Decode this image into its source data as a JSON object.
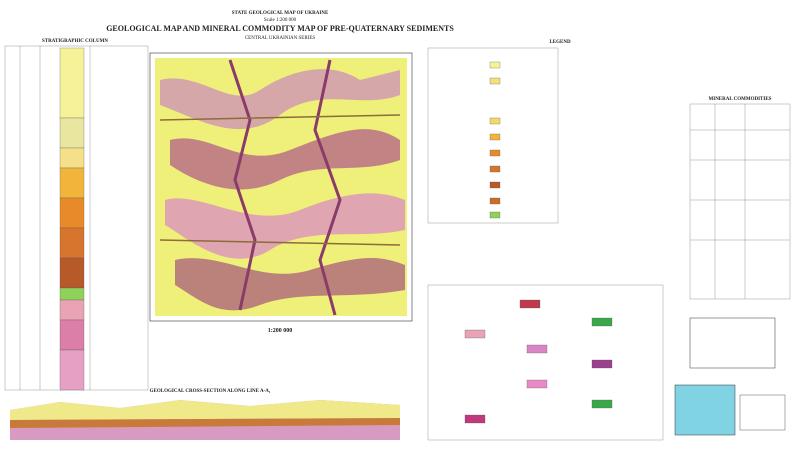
{
  "header": {
    "agency": "STATE GEOLOGICAL MAP OF UKRAINE",
    "scale": "Scale 1:200 000",
    "title": "GEOLOGICAL MAP AND MINERAL COMMODITY MAP OF PRE-QUATERNARY SEDIMENTS",
    "series": "CENTRAL UKRAINIAN SERIES"
  },
  "sections": {
    "stratigraphic_column": "STRATIGRAPHIC COLUMN",
    "legend": "LEGEND",
    "mineral_commodities": "MINERAL COMMODITIES",
    "map_scale": "1:200 000",
    "cross_section": "GEOLOGICAL CROSS-SECTION ALONG LINE A-A₁"
  }
}
